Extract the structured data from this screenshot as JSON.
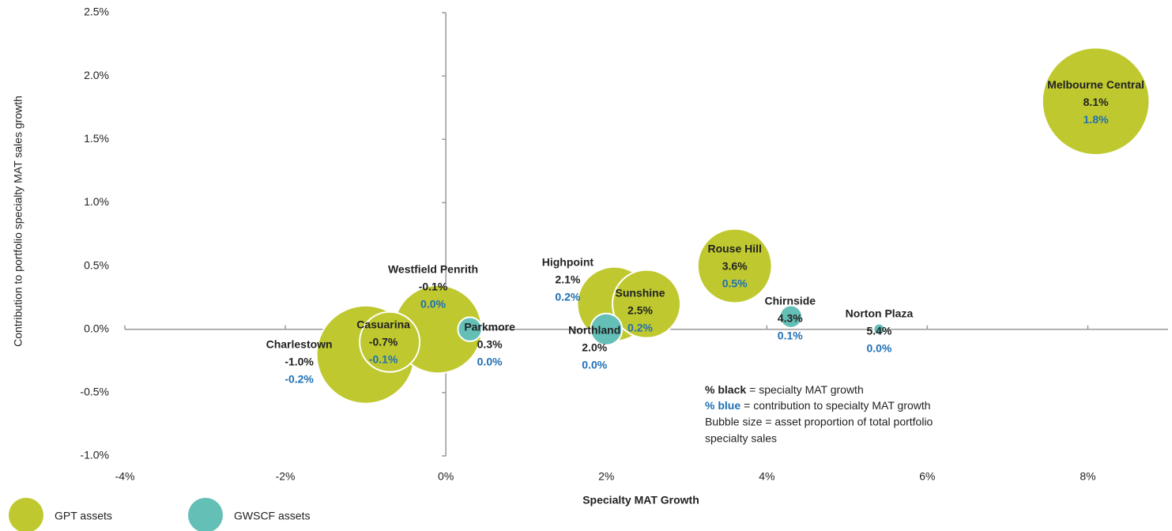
{
  "chart_data": {
    "type": "bubble",
    "x_label": "Specialty MAT Growth",
    "y_label": "Contribution to portfolio specialty MAT sales growth",
    "xlim": [
      -4,
      9
    ],
    "ylim": [
      -1,
      2.5
    ],
    "xticks": [
      {
        "value": -4,
        "label": "-4%"
      },
      {
        "value": -2,
        "label": "-2%"
      },
      {
        "value": 0,
        "label": "0%"
      },
      {
        "value": 2,
        "label": "2%"
      },
      {
        "value": 4,
        "label": "4%"
      },
      {
        "value": 6,
        "label": "6%"
      },
      {
        "value": 8,
        "label": "8%"
      }
    ],
    "yticks": [
      {
        "value": -1,
        "label": "-1.0%"
      },
      {
        "value": -0.5,
        "label": "-0.5%"
      },
      {
        "value": 0,
        "label": "0.0%"
      },
      {
        "value": 0.5,
        "label": "0.5%"
      },
      {
        "value": 1,
        "label": "1.0%"
      },
      {
        "value": 1.5,
        "label": "1.5%"
      },
      {
        "value": 2,
        "label": "2.0%"
      },
      {
        "value": 2.5,
        "label": "2.5%"
      }
    ],
    "legend": "bottom-left",
    "series": [
      {
        "name": "GPT assets",
        "color": "#bfc92f",
        "names": [
          "Melbourne Central",
          "Rouse Hill",
          "Highpoint",
          "Sunshine",
          "Charlestown",
          "Westfield Penrith",
          "Casuarina"
        ],
        "x": [
          8.1,
          3.6,
          2.1,
          2.5,
          -1.0,
          -0.1,
          -0.7
        ],
        "x_labels": [
          "8.1%",
          "3.6%",
          "2.1%",
          "2.5%",
          "-1.0%",
          "-0.1%",
          "-0.7%"
        ],
        "values": [
          1.8,
          0.5,
          0.2,
          0.2,
          -0.2,
          0.0,
          -0.1
        ],
        "value_labels": [
          "1.8%",
          "0.5%",
          "0.2%",
          "0.2%",
          "-0.2%",
          "0.0%",
          "-0.1%"
        ],
        "sizes": [
          46,
          22,
          22,
          18.5,
          38.4,
          31,
          14.4
        ]
      },
      {
        "name": "GWSCF assets",
        "color": "#64bfb7",
        "names": [
          "Northland",
          "Chirnside",
          "Norton Plaza",
          "Parkmore"
        ],
        "x": [
          2.0,
          4.3,
          5.4,
          0.3
        ],
        "x_labels": [
          "2.0%",
          "4.3%",
          "5.4%",
          "0.3%"
        ],
        "values": [
          0.0,
          0.1,
          0.0,
          0.0
        ],
        "value_labels": [
          "0.0%",
          "0.1%",
          "0.0%",
          "0.0%"
        ],
        "sizes": [
          4,
          2,
          0.5,
          2.3
        ]
      }
    ],
    "annotations": [
      "% black",
      "= specialty MAT growth",
      "% blue",
      "= contribution to specialty MAT growth",
      "Bubble size = asset proportion of total portfolio",
      "specialty  sales"
    ]
  }
}
